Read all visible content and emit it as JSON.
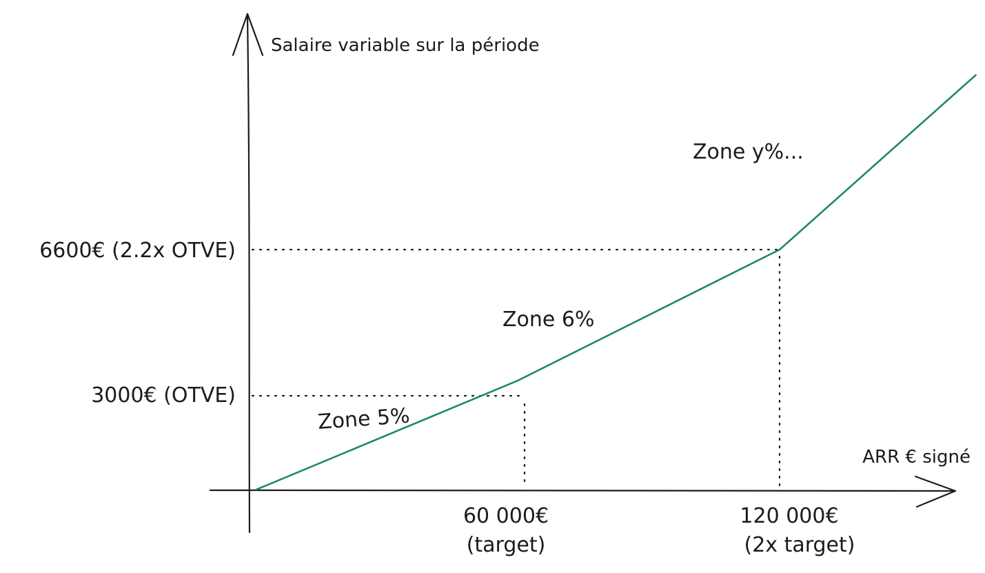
{
  "title": "",
  "axes": {
    "y_title": "Salaire variable sur la période",
    "x_title": "ARR € signé"
  },
  "y_ticks": [
    {
      "text": "6600€ (2.2x OTVE)",
      "value": 6600
    },
    {
      "text": "3000€ (OTVE)",
      "value": 3000
    }
  ],
  "x_ticks": [
    {
      "line1": "60 000€",
      "line2": "(target)",
      "value": 60000
    },
    {
      "line1": "120 000€",
      "line2": "(2x target)",
      "value": 120000
    }
  ],
  "zones": [
    {
      "text": "Zone 5%"
    },
    {
      "text": "Zone 6%"
    },
    {
      "text": "Zone y%..."
    }
  ],
  "colors": {
    "curve": "#1e8a5c",
    "ink": "#1b1b1b"
  },
  "chart_data": {
    "type": "line",
    "x_label": "ARR € signé",
    "y_label": "Salaire variable sur la période",
    "series": [
      {
        "points": [
          {
            "x": 0,
            "y": 0
          },
          {
            "x": 60000,
            "y": 3000
          },
          {
            "x": 120000,
            "y": 6600
          },
          {
            "x": 165000,
            "y": 11400
          }
        ]
      }
    ],
    "x_ticks": [
      60000,
      120000
    ],
    "y_ticks": [
      3000,
      6600
    ],
    "grid": false,
    "legend": "none"
  }
}
